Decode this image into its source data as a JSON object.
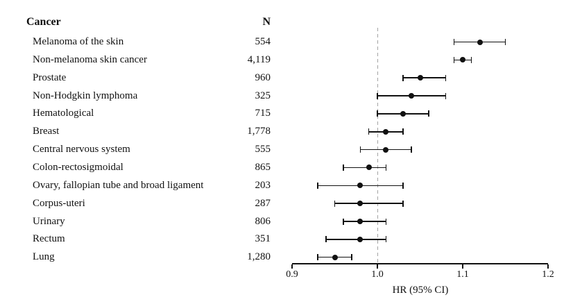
{
  "chart_data": {
    "type": "scatter",
    "subtype": "forest-plot",
    "title": "",
    "columns": {
      "cancer": "Cancer",
      "n": "N"
    },
    "xlabel": "HR (95% CI)",
    "x_range": [
      0.9,
      1.2
    ],
    "x_ticks": [
      {
        "value": 0.9,
        "label": "0.9"
      },
      {
        "value": 1.0,
        "label": "1.0"
      },
      {
        "value": 1.1,
        "label": "1.1"
      },
      {
        "value": 1.2,
        "label": "1.2"
      }
    ],
    "reference_line": 1.0,
    "grid": false,
    "legend": false,
    "rows": [
      {
        "label": "Melanoma of the skin",
        "n": "554",
        "hr": 1.12,
        "ci_low": 1.09,
        "ci_high": 1.15
      },
      {
        "label": "Non-melanoma skin cancer",
        "n": "4,119",
        "hr": 1.1,
        "ci_low": 1.09,
        "ci_high": 1.11
      },
      {
        "label": "Prostate",
        "n": "960",
        "hr": 1.05,
        "ci_low": 1.03,
        "ci_high": 1.08
      },
      {
        "label": "Non-Hodgkin lymphoma",
        "n": "325",
        "hr": 1.04,
        "ci_low": 1.0,
        "ci_high": 1.08
      },
      {
        "label": "Hematological",
        "n": "715",
        "hr": 1.03,
        "ci_low": 1.0,
        "ci_high": 1.06
      },
      {
        "label": "Breast",
        "n": "1,778",
        "hr": 1.01,
        "ci_low": 0.99,
        "ci_high": 1.03
      },
      {
        "label": "Central nervous system",
        "n": "555",
        "hr": 1.01,
        "ci_low": 0.98,
        "ci_high": 1.04
      },
      {
        "label": "Colon-rectosigmoidal",
        "n": "865",
        "hr": 0.99,
        "ci_low": 0.96,
        "ci_high": 1.01
      },
      {
        "label": "Ovary, fallopian tube and broad ligament",
        "n": "203",
        "hr": 0.98,
        "ci_low": 0.93,
        "ci_high": 1.03
      },
      {
        "label": "Corpus-uteri",
        "n": "287",
        "hr": 0.98,
        "ci_low": 0.95,
        "ci_high": 1.03
      },
      {
        "label": "Urinary",
        "n": "806",
        "hr": 0.98,
        "ci_low": 0.96,
        "ci_high": 1.01
      },
      {
        "label": "Rectum",
        "n": "351",
        "hr": 0.98,
        "ci_low": 0.94,
        "ci_high": 1.01
      },
      {
        "label": "Lung",
        "n": "1,280",
        "hr": 0.95,
        "ci_low": 0.93,
        "ci_high": 0.97
      }
    ],
    "colors": {
      "marker": "#111111",
      "interval_line": "#111111",
      "reference_line": "#a3a3a3",
      "text": "#111111",
      "background": "#ffffff"
    }
  }
}
